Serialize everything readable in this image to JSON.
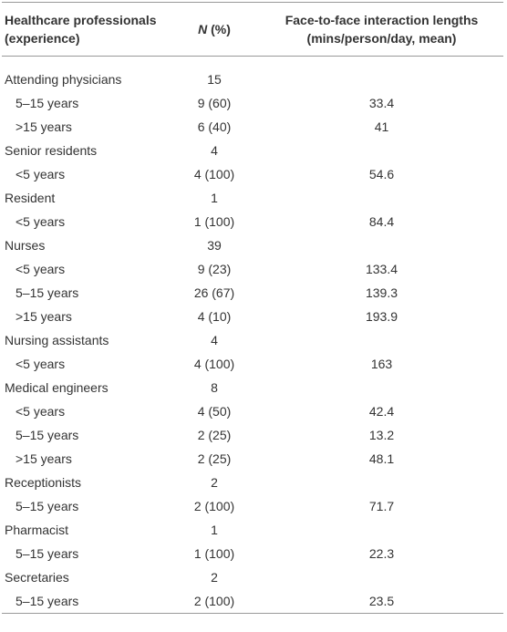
{
  "table": {
    "header": [
      [
        "Healthcare professionals",
        "(experience)"
      ],
      {
        "italic": "N",
        "rest": "(%)"
      },
      [
        "Face-to-face interaction lengths",
        "(mins/person/day, mean)"
      ]
    ],
    "groups": [
      {
        "name": "Attending physicians",
        "n": 15,
        "rows": [
          [
            "5–15 years",
            "9 (60)",
            33.4
          ],
          [
            ">15 years",
            "6 (40)",
            41
          ]
        ]
      },
      {
        "name": "Senior residents",
        "n": 4,
        "rows": [
          [
            "<5 years",
            "4 (100)",
            54.6
          ]
        ]
      },
      {
        "name": "Resident",
        "n": 1,
        "rows": [
          [
            "<5 years",
            "1 (100)",
            84.4
          ]
        ]
      },
      {
        "name": "Nurses",
        "n": 39,
        "rows": [
          [
            "<5 years",
            "9 (23)",
            133.4
          ],
          [
            "5–15 years",
            "26 (67)",
            139.3
          ],
          [
            ">15 years",
            "4 (10)",
            193.9
          ]
        ]
      },
      {
        "name": "Nursing assistants",
        "n": 4,
        "rows": [
          [
            "<5 years",
            "4 (100)",
            163
          ]
        ]
      },
      {
        "name": "Medical engineers",
        "n": 8,
        "rows": [
          [
            "<5 years",
            "4 (50)",
            42.4
          ],
          [
            "5–15 years",
            "2 (25)",
            13.2
          ],
          [
            ">15 years",
            "2 (25)",
            48.1
          ]
        ]
      },
      {
        "name": "Receptionists",
        "n": 2,
        "rows": [
          [
            "5–15 years",
            "2 (100)",
            71.7
          ]
        ]
      },
      {
        "name": "Pharmacist",
        "n": 1,
        "rows": [
          [
            "5–15 years",
            "1 (100)",
            22.3
          ]
        ]
      },
      {
        "name": "Secretaries",
        "n": 2,
        "rows": [
          [
            "5–15 years",
            "2 (100)",
            23.5
          ]
        ]
      }
    ]
  }
}
